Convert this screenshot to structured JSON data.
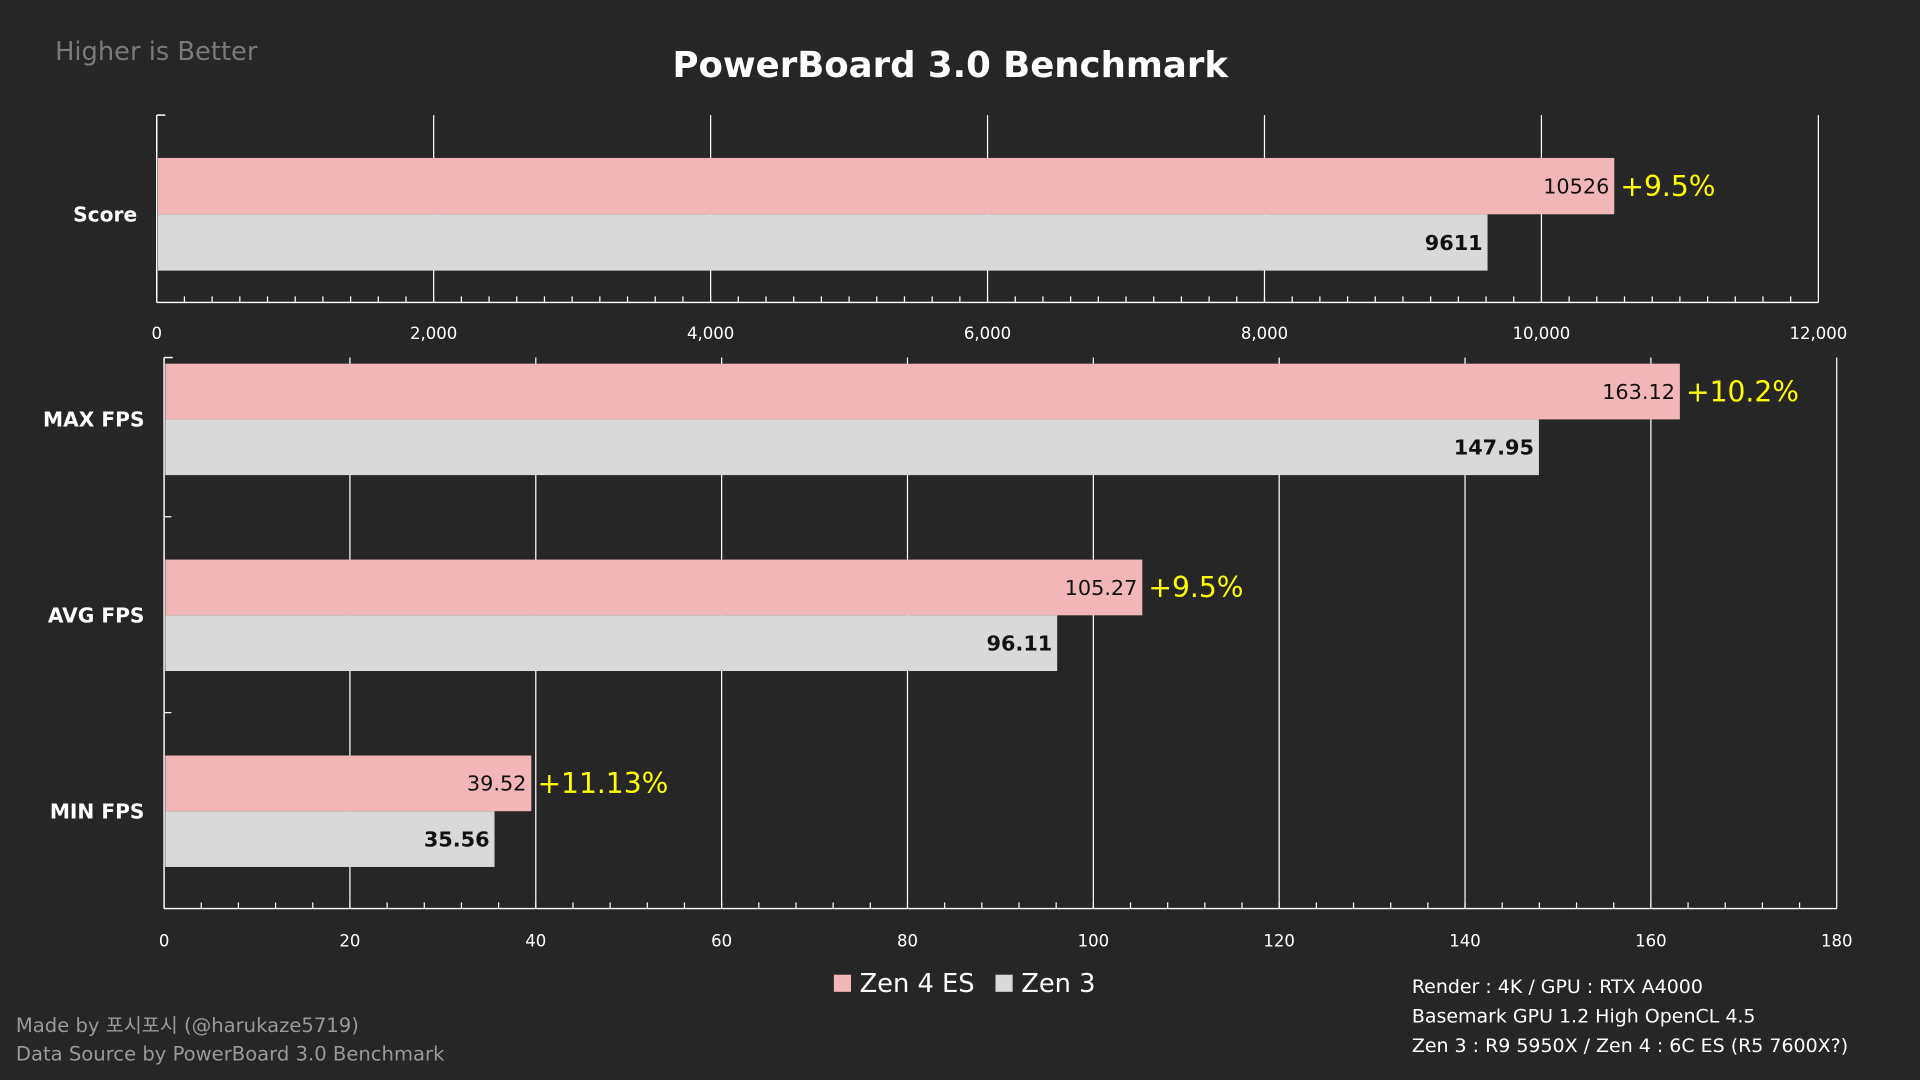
{
  "corner_note": "Higher is Better",
  "colors": {
    "background": "#262626",
    "zen4": "#f2b6b8",
    "zen3": "#d9d9d9",
    "diff": "#ffff00",
    "grid": "#ffffff"
  },
  "chart_data": [
    {
      "type": "bar",
      "orientation": "horizontal",
      "title": "PowerBoard 3.0 Benchmark",
      "categories": [
        "Score"
      ],
      "series": [
        {
          "name": "Zen 4 ES",
          "values": [
            10526
          ],
          "labels": [
            "10526"
          ]
        },
        {
          "name": "Zen 3",
          "values": [
            9611
          ],
          "labels": [
            "9611"
          ]
        }
      ],
      "annotations": [
        "+9.5%"
      ],
      "xlim": [
        0,
        12000
      ],
      "xticks": [
        "0",
        "2,000",
        "4,000",
        "6,000",
        "8,000",
        "10,000",
        "12,000"
      ],
      "grid": true
    },
    {
      "type": "bar",
      "orientation": "horizontal",
      "categories": [
        "MAX FPS",
        "AVG FPS",
        "MIN FPS"
      ],
      "series": [
        {
          "name": "Zen 4 ES",
          "values": [
            163.12,
            105.27,
            39.52
          ],
          "labels": [
            "163.12",
            "105.27",
            "39.52"
          ]
        },
        {
          "name": "Zen 3",
          "values": [
            147.95,
            96.11,
            35.56
          ],
          "labels": [
            "147.95",
            "96.11",
            "35.56"
          ]
        }
      ],
      "annotations": [
        "+10.2%",
        "+9.5%",
        "+11.13%"
      ],
      "xlim": [
        0,
        180
      ],
      "xticks": [
        "0",
        "20",
        "40",
        "60",
        "80",
        "100",
        "120",
        "140",
        "160",
        "180"
      ],
      "grid": true,
      "legend": "bottom-center"
    }
  ],
  "legend": [
    "Zen 4 ES",
    "Zen 3"
  ],
  "credits": [
    "Made by 포시포시 (@harukaze5719)",
    "Data Source by PowerBoard 3.0 Benchmark"
  ],
  "notes": [
    "Render : 4K / GPU : RTX A4000",
    "Basemark GPU 1.2 High OpenCL 4.5",
    "Zen 3 : R9 5950X / Zen 4 : 6C ES (R5 7600X?)"
  ]
}
